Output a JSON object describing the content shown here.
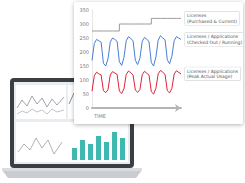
{
  "chart_data": {
    "type": "line",
    "categories": [
      null,
      null,
      null,
      null,
      null,
      null,
      null,
      null,
      null,
      null,
      null,
      null,
      null,
      null,
      null,
      null,
      null,
      null,
      null,
      null,
      null,
      null,
      null,
      null,
      null,
      null,
      null,
      null,
      null,
      null,
      null,
      null,
      null,
      null,
      null,
      null,
      null,
      null,
      null,
      null
    ],
    "series": [
      {
        "name": "Licenses (Purchased & Current)",
        "color": "#9a9a9a",
        "line_style": "step",
        "values": [
          275,
          275,
          275,
          275,
          275,
          275,
          275,
          275,
          275,
          275,
          275,
          275,
          300,
          300,
          300,
          300,
          300,
          300,
          300,
          300,
          300,
          300,
          300,
          300,
          300,
          300,
          320,
          320,
          320,
          320,
          320,
          320,
          320,
          320,
          320,
          320,
          320,
          320,
          320,
          320
        ]
      },
      {
        "name": "Licenses / Applications (Checked Out / Running)",
        "color": "#4a7fd4",
        "line_style": "solid",
        "values": [
          170,
          230,
          245,
          240,
          235,
          160,
          150,
          175,
          235,
          250,
          245,
          238,
          165,
          152,
          180,
          240,
          255,
          248,
          240,
          170,
          155,
          178,
          238,
          252,
          246,
          236,
          162,
          150,
          182,
          242,
          258,
          250,
          244,
          172,
          158,
          185,
          240,
          255,
          250,
          245
        ]
      },
      {
        "name": "Licenses / Applications (Peak Actual Usage)",
        "color": "#e0223a",
        "line_style": "solid",
        "values": [
          60,
          115,
          128,
          122,
          118,
          62,
          55,
          65,
          118,
          130,
          125,
          120,
          60,
          52,
          68,
          120,
          132,
          126,
          118,
          64,
          56,
          66,
          119,
          131,
          124,
          117,
          58,
          50,
          70,
          122,
          134,
          128,
          120,
          62,
          54,
          70,
          121,
          133,
          127,
          122
        ]
      }
    ],
    "x_label": "TIME",
    "ylim": [
      0,
      350
    ],
    "yticks": [
      0,
      50,
      100,
      150,
      200,
      250,
      300,
      350
    ],
    "grid": false,
    "tick_labels": "y"
  }
}
